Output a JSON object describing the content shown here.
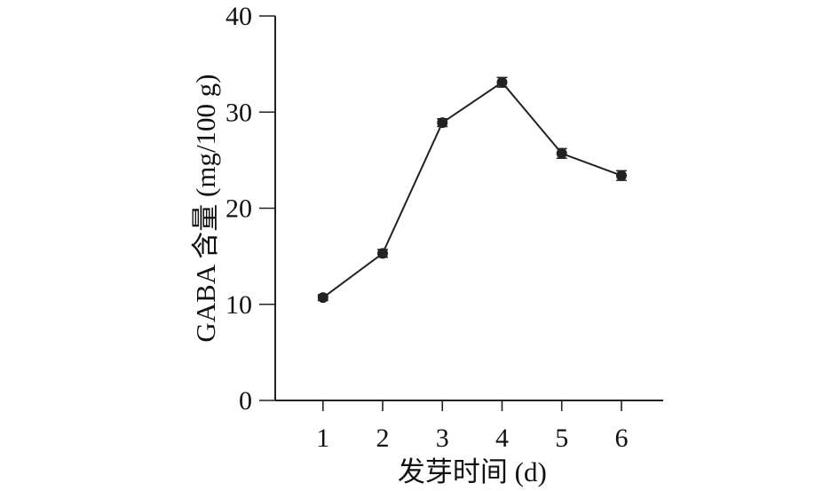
{
  "chart_data": {
    "type": "line",
    "xlabel": "发芽时间 (d)",
    "ylabel": "GABA 含量 (mg/100 g)",
    "x": [
      1,
      2,
      3,
      4,
      5,
      6
    ],
    "xlim": [
      0.2,
      6.7
    ],
    "ylim": [
      0,
      40
    ],
    "x_ticks": [
      "1",
      "2",
      "3",
      "4",
      "5",
      "6"
    ],
    "y_ticks": [
      "0",
      "10",
      "20",
      "30",
      "40"
    ],
    "series": [
      {
        "values": [
          10.7,
          15.3,
          28.9,
          33.1,
          25.7,
          23.4
        ],
        "errors": [
          0.3,
          0.4,
          0.4,
          0.5,
          0.5,
          0.5
        ],
        "color": "#222222"
      }
    ],
    "grid": false,
    "legend": "none"
  }
}
